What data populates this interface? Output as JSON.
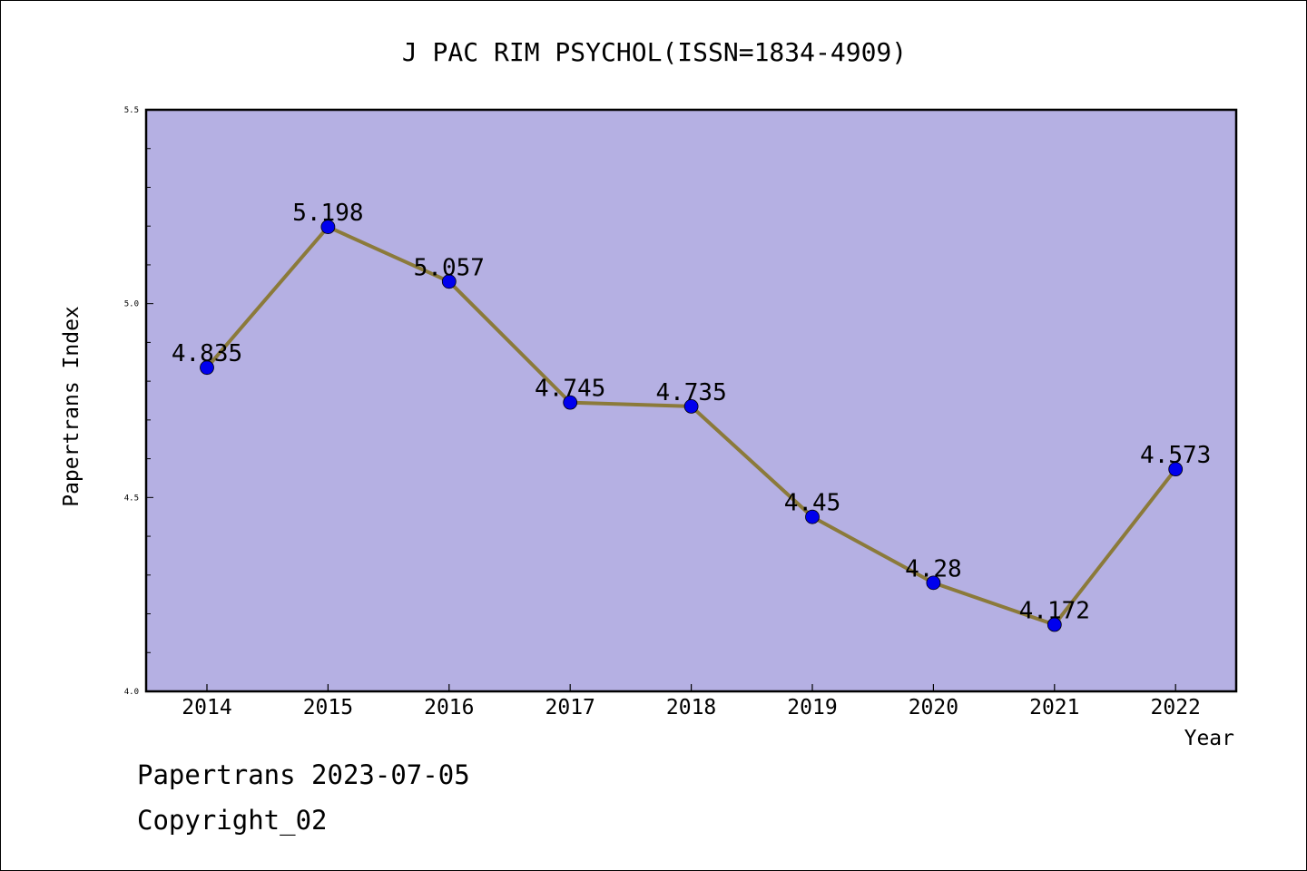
{
  "chart_data": {
    "type": "line",
    "title": "J PAC RIM PSYCHOL(ISSN=1834-4909)",
    "xlabel": "Year",
    "ylabel": "Papertrans Index",
    "categories": [
      "2014",
      "2015",
      "2016",
      "2017",
      "2018",
      "2019",
      "2020",
      "2021",
      "2022"
    ],
    "series": [
      {
        "values": [
          4.835,
          5.198,
          5.057,
          4.745,
          4.735,
          4.45,
          4.28,
          4.172,
          4.573
        ],
        "labels": [
          "4.835",
          "5.198",
          "5.057",
          "4.745",
          "4.735",
          "4.45",
          "4.28",
          "4.172",
          "4.573"
        ]
      }
    ],
    "ylim": [
      4.0,
      5.5
    ],
    "yticks": [
      "4.0",
      "4.5",
      "5.0",
      "5.5"
    ],
    "yminor_step": 0.1,
    "grid": false,
    "colors": {
      "plot_background": "#b5b0e3",
      "line": "#8b7a3a",
      "marker": "#0000ee",
      "axis": "#000000"
    }
  },
  "footer": {
    "line1": "Papertrans 2023-07-05",
    "line2": "Copyright_02"
  }
}
